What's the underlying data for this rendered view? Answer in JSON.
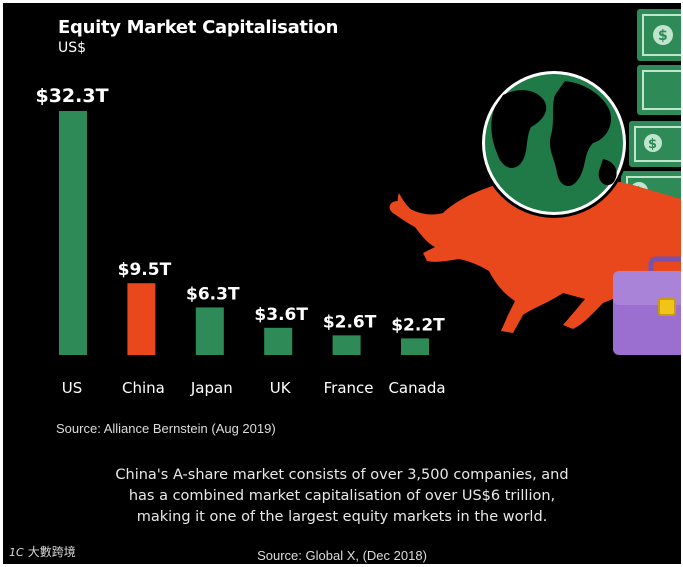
{
  "chart_data": {
    "type": "bar",
    "title": "Equity Market Capitalisation",
    "unit": "US$",
    "categories": [
      "US",
      "China",
      "Japan",
      "UK",
      "France",
      "Canada"
    ],
    "values": [
      32.3,
      9.5,
      6.3,
      3.6,
      2.6,
      2.2
    ],
    "value_labels": [
      "$32.3T",
      "$9.5T",
      "$6.3T",
      "$3.6T",
      "$2.6T",
      "$2.2T"
    ],
    "colors": [
      "#2e8b57",
      "#e8481c",
      "#2e8b57",
      "#2e8b57",
      "#2e8b57",
      "#2e8b57"
    ],
    "ylim": [
      0,
      32.3
    ],
    "grid": false
  },
  "source_1": "Source: Alliance Bernstein (Aug 2019)",
  "note_lines": [
    "China's A-share market consists of over 3,500 companies, and",
    "has a combined market capitalisation of over US$6 trillion,",
    "making it one of the largest equity markets in the world."
  ],
  "source_2": "Source: Global X, (Dec 2018)",
  "watermark": {
    "logo": "1C",
    "text": "大數跨境"
  },
  "illustration": {
    "icons": [
      "globe-icon",
      "bull-icon",
      "briefcase-icon",
      "banknote-icon"
    ],
    "colors": {
      "globe_ocean": "#ffffff",
      "globe_land": "#1f7a47",
      "bull": "#e8481c",
      "briefcase": "#9b6fd0",
      "banknote": "#2e8b57"
    }
  }
}
